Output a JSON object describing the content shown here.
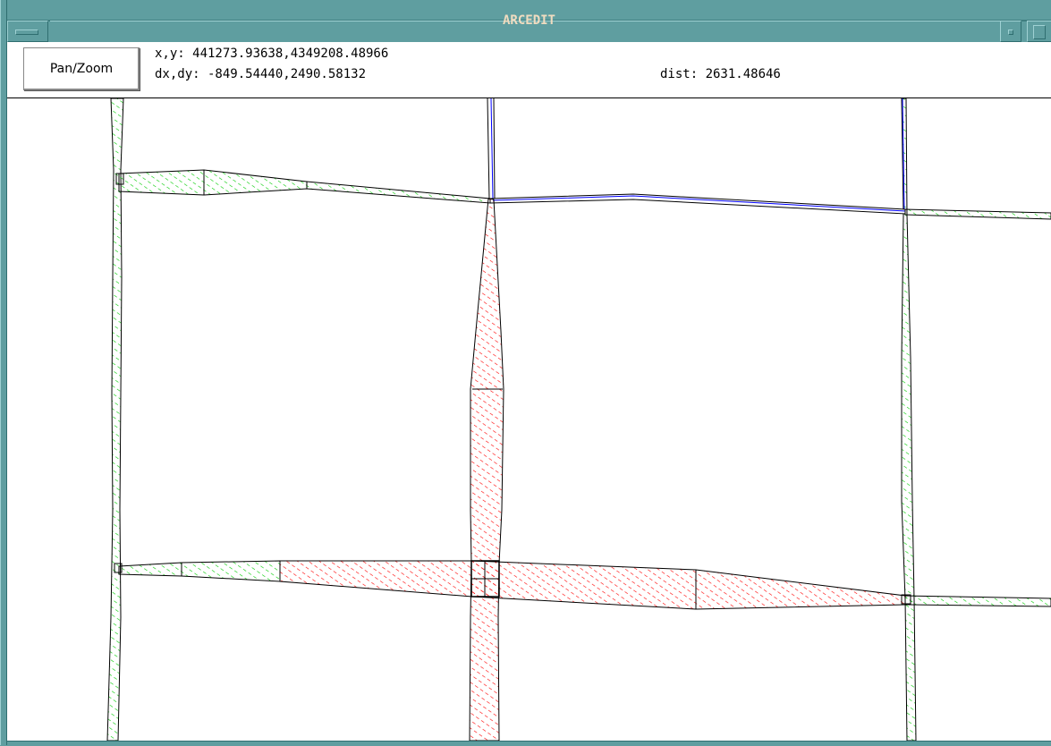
{
  "window": {
    "title": "ARCEDIT"
  },
  "toolbar": {
    "pan_zoom_label": "Pan/Zoom",
    "xy_text": "x,y: 441273.93638,4349208.48966",
    "dxdy_text": "dx,dy: -849.54440,2490.58132",
    "dist_text": "dist: 2631.48646"
  },
  "colors": {
    "frame": "#5f9ea0",
    "title_text": "#f0dcc0",
    "selected_fill": "#ff0000",
    "feature_fill": "#00cc00",
    "highlight_line": "#0000ff"
  }
}
